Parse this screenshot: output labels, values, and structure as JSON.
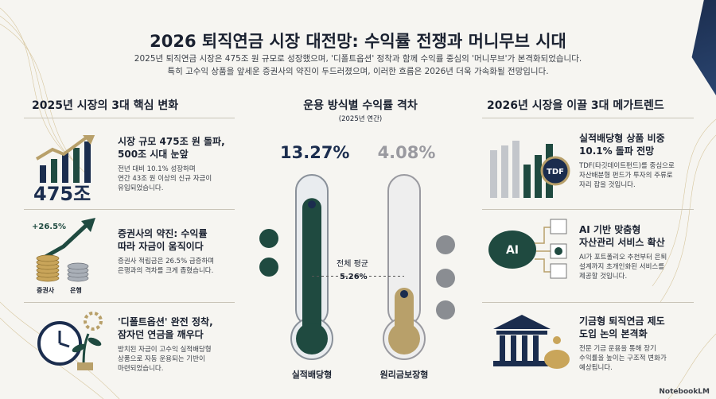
{
  "header": {
    "title": "2026 퇴직연금 시장 대전망: 수익률 전쟁과 머니무브 시대",
    "subtitle_line1": "2025년 퇴직연금 시장은 475조 원 규모로 성장했으며, '디폴트옵션' 정착과 함께 수익률 중심의 '머니무브'가 본격화되었습니다.",
    "subtitle_line2": "특히 고수익 상품을 앞세운 증권사의 약진이 두드러졌으며, 이러한 흐름은 2026년 더욱 가속화될 전망입니다."
  },
  "left": {
    "heading": "2025년 시장의 3대 핵심 변화",
    "items": [
      {
        "icon": "growth-bar-chart-icon",
        "graphic_text": "475조",
        "title_line1": "시장 규모 475조 원 돌파,",
        "title_line2": "500조 시대 눈앞",
        "desc_line1": "전년 대비 10.1% 성장하며",
        "desc_line2": "연간 43조 원 이상의 신규 자금이",
        "desc_line3": "유입되었습니다."
      },
      {
        "icon": "coin-stacks-icon",
        "growth_label": "+26.5%",
        "coin_label_a": "증권사",
        "coin_label_b": "은행",
        "title_line1": "증권사의 약진: 수익률",
        "title_line2": "따라 자금이 움직이다",
        "desc_line1": "증권사 적립금은 26.5% 급증하며",
        "desc_line2": "은행과의 격차를 크게 좁혔습니다."
      },
      {
        "icon": "clock-plant-icon",
        "title_line1": "'디폴트옵션' 완전 정착,",
        "title_line2": "잠자던 연금을 깨우다",
        "desc_line1": "방치된 자금이 고수익 실적배당형",
        "desc_line2": "상품으로 자동 운용되는 기반이",
        "desc_line3": "마련되었습니다."
      }
    ]
  },
  "center": {
    "heading": "운용 방식별 수익률 격차",
    "period": "(2025년 연간)",
    "average_label": "전체 평균",
    "average_value": "5.26%",
    "thermometers": [
      {
        "label": "실적배당형",
        "value_text": "13.27%",
        "value": 13.27,
        "color": "#1f4a40"
      },
      {
        "label": "원리금보장형",
        "value_text": "4.08%",
        "value": 4.08,
        "color": "#b8a06a"
      }
    ]
  },
  "right": {
    "heading": "2026년 시장을 이끌 3대 메가트렌드",
    "items": [
      {
        "icon": "tdf-bar-chart-icon",
        "badge": "TDF",
        "title_line1": "실적배당형 상품 비중",
        "title_line2": "10.1% 돌파 전망",
        "desc_line1": "TDF(타깃데이트펀드)를 중심으로",
        "desc_line2": "자산배분형 펀드가 투자의 주류로",
        "desc_line3": "자리 잡을 것입니다."
      },
      {
        "icon": "ai-brain-icon",
        "badge": "AI",
        "title_line1": "AI 기반 맞춤형",
        "title_line2": "자산관리 서비스 확산",
        "desc_line1": "AI가 포트폴리오 추천부터 은퇴",
        "desc_line2": "설계까지 초개인화된 서비스를",
        "desc_line3": "제공할 것입니다."
      },
      {
        "icon": "institution-piggy-bank-icon",
        "title_line1": "기금형 퇴직연금 제도",
        "title_line2": "도입 논의 본격화",
        "desc_line1": "전문 기금 운용을 통해 장기",
        "desc_line2": "수익률을 높이는 구조적 변화가",
        "desc_line3": "예상됩니다."
      }
    ]
  },
  "footer": {
    "brand": "NotebookLM"
  },
  "colors": {
    "navy": "#1b2d4e",
    "green": "#1f4a40",
    "gold": "#b8a06a"
  }
}
